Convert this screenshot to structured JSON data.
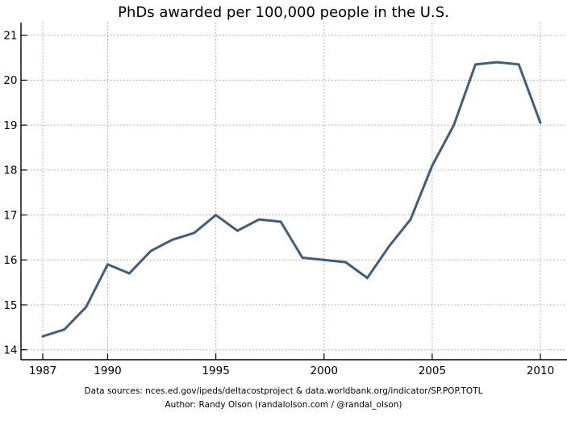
{
  "title": "PhDs awarded per 100,000 people in the U.S.",
  "footer": {
    "line1": "Data sources: nces.ed.gov/ipeds/deltacostproject & data.worldbank.org/indicator/SP.POP.TOTL",
    "line2": "Author: Randy Olson (randalolson.com / @randal_olson)"
  },
  "colors": {
    "line": "#3f5d7d",
    "grid": "#9e9e9e",
    "spine": "#000000",
    "text": "#000000",
    "background": "#ffffff"
  },
  "chart_data": {
    "type": "line",
    "title": "PhDs awarded per 100,000 people in the U.S.",
    "x": [
      1987,
      1988,
      1989,
      1990,
      1991,
      1992,
      1993,
      1994,
      1995,
      1996,
      1997,
      1998,
      1999,
      2000,
      2001,
      2002,
      2003,
      2004,
      2005,
      2006,
      2007,
      2008,
      2009,
      2010
    ],
    "values": [
      14.3,
      14.45,
      14.95,
      15.9,
      15.7,
      16.2,
      16.45,
      16.6,
      17.0,
      16.65,
      16.9,
      16.85,
      16.05,
      16.0,
      15.95,
      15.6,
      16.3,
      16.9,
      18.1,
      19.0,
      20.35,
      20.4,
      20.35,
      19.05
    ],
    "series_name": "PhDs awarded per 100,000 people",
    "xlabel": "",
    "ylabel": "",
    "xlim": [
      1986,
      2011.2
    ],
    "ylim": [
      13.8,
      21.3
    ],
    "x_ticks": [
      1987,
      1990,
      1995,
      2000,
      2005,
      2010
    ],
    "y_ticks": [
      14,
      15,
      16,
      17,
      18,
      19,
      20,
      21
    ],
    "grid": true,
    "grid_style": "dotted",
    "legend_position": "none",
    "line_width": 3
  }
}
